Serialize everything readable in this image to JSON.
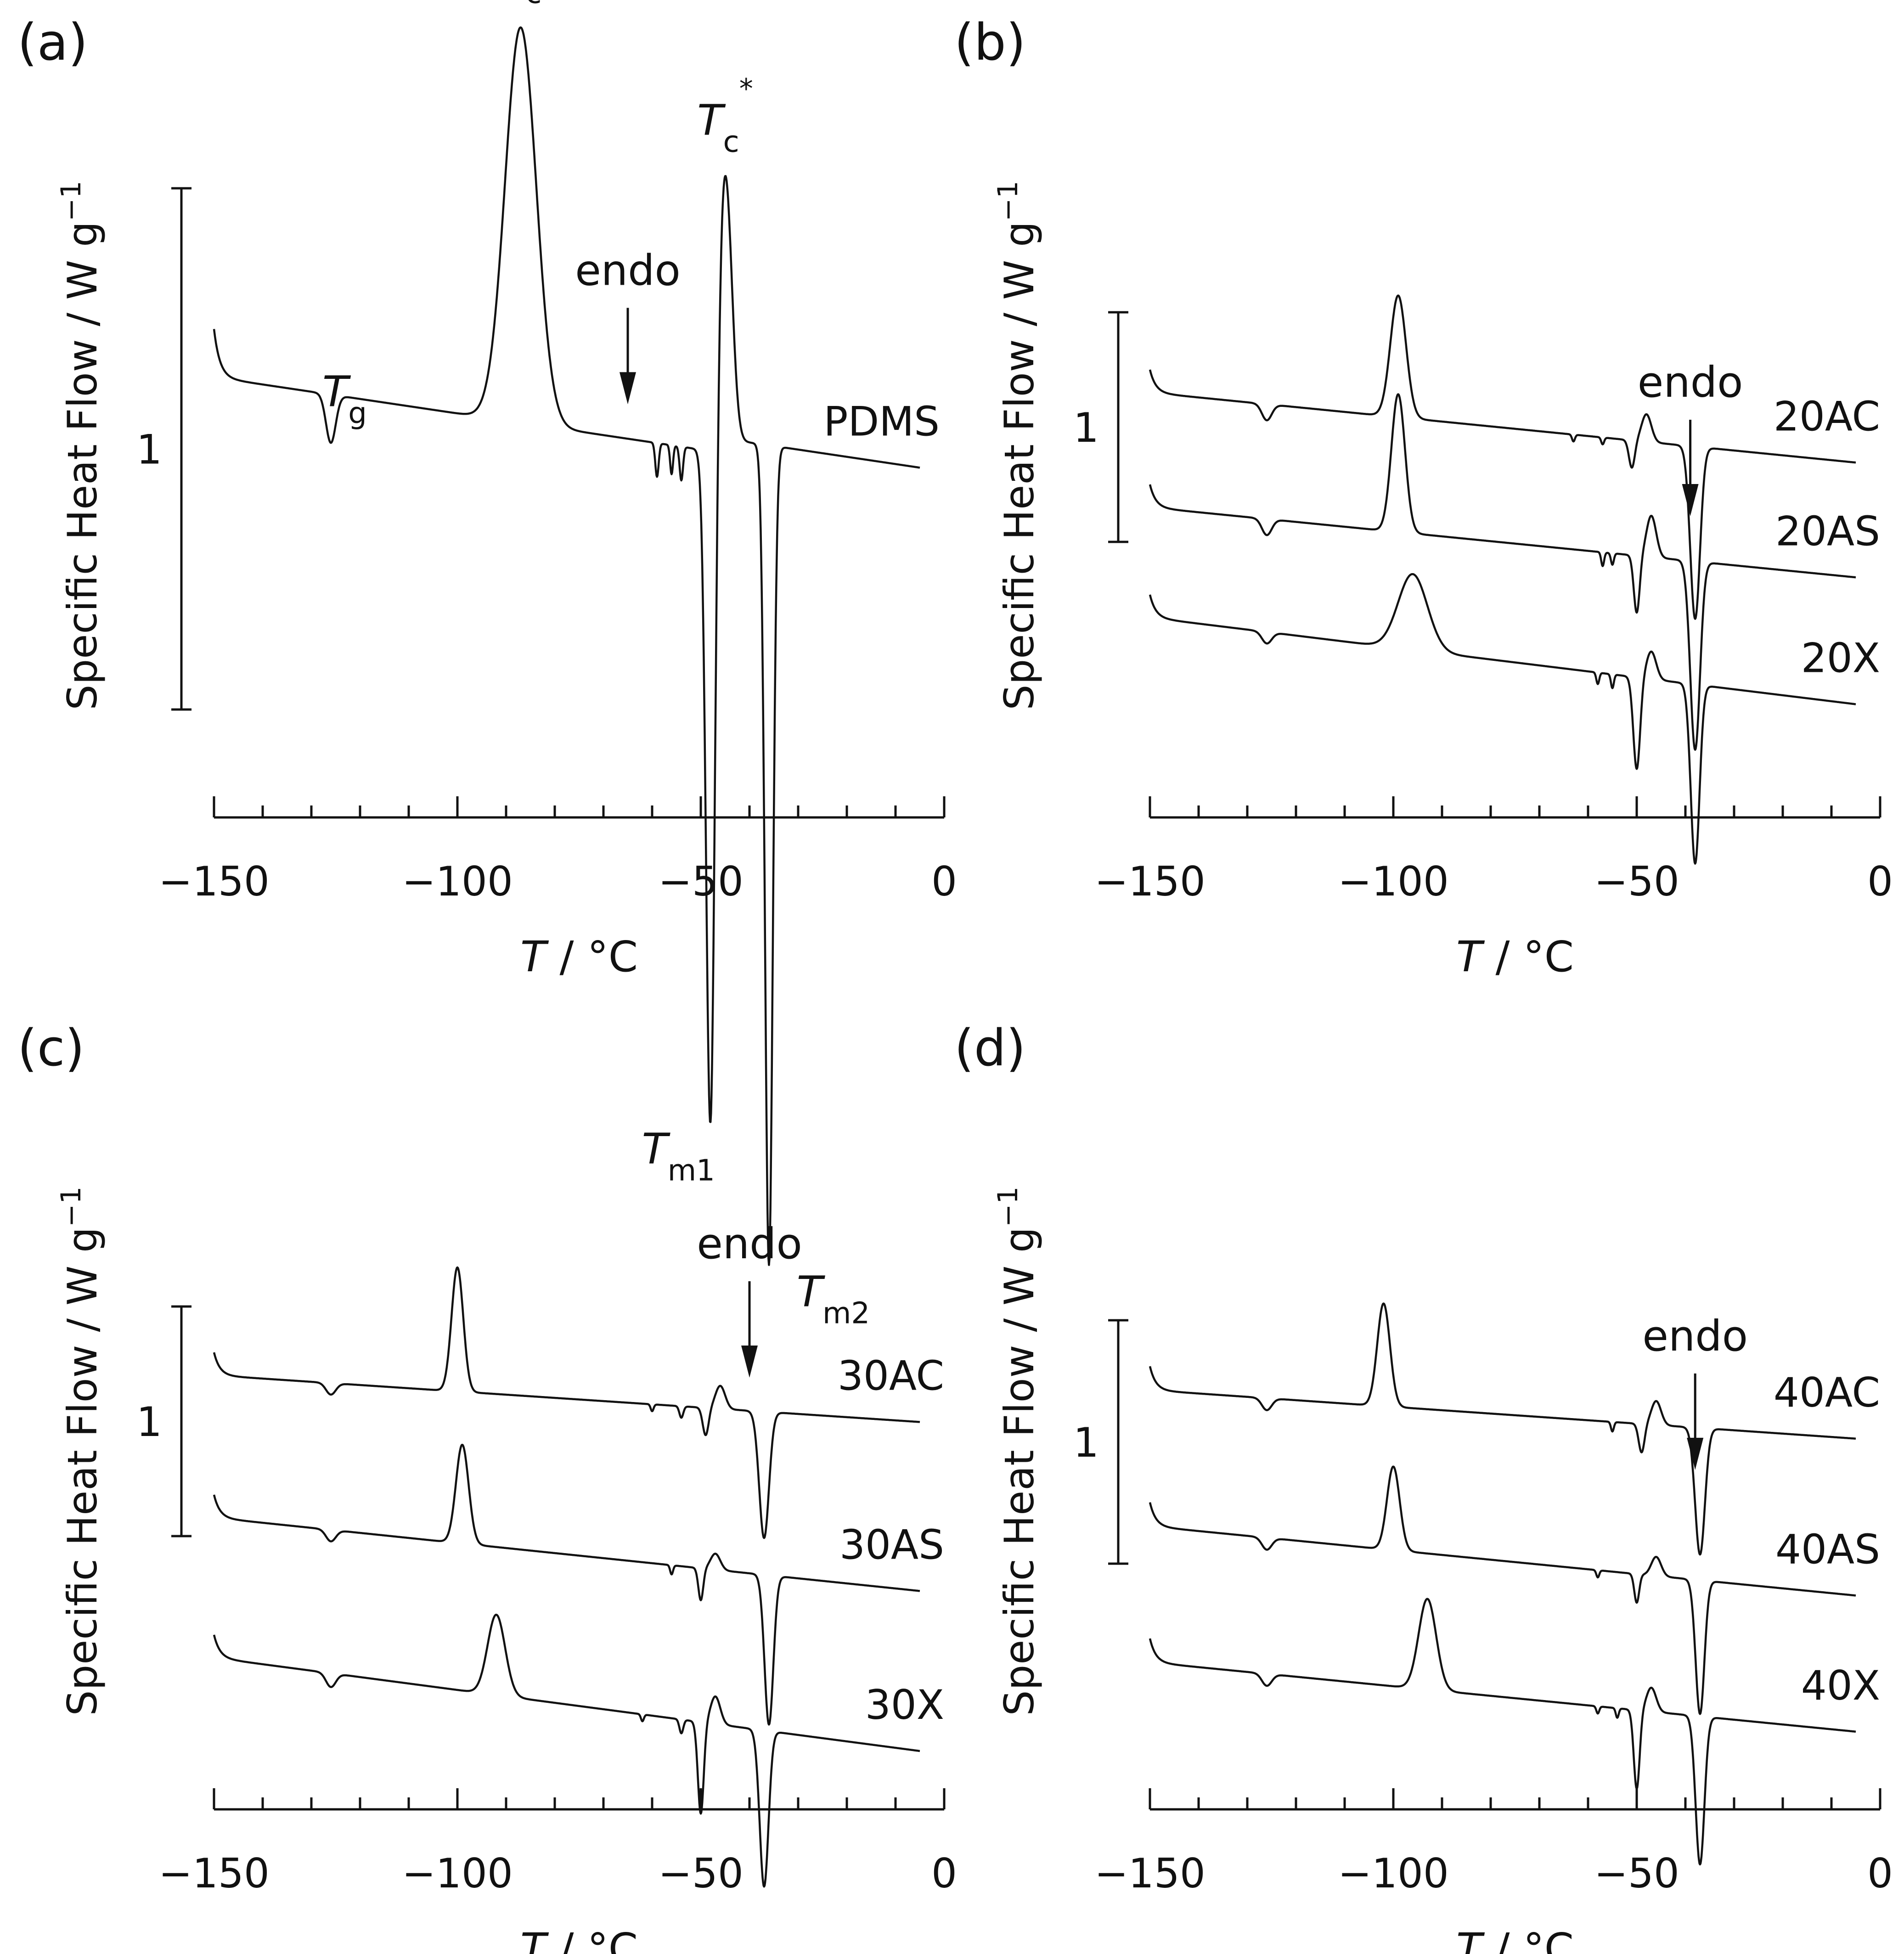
{
  "chart_data": [
    {
      "panel": "(a)",
      "type": "line",
      "xlabel_var": "T",
      "xlabel_unit": " / °C",
      "ylabel": "Specific Heat Flow / W g",
      "ylabel_exp": "−1",
      "xlim": [
        -150,
        0
      ],
      "xticks": [
        -150,
        -100,
        -50,
        0
      ],
      "xtick_labels": [
        "−150",
        "−100",
        "−50",
        "0"
      ],
      "scale_bar_value": 1,
      "scale_bar_label": "1",
      "endo_label": "endo",
      "endo_x": -65,
      "annotations": [
        {
          "name": "Tg",
          "var": "T",
          "sub": "g",
          "sup": "",
          "x": -126
        },
        {
          "name": "Tc",
          "var": "T",
          "sub": "c",
          "sup": "",
          "x": -87
        },
        {
          "name": "Tc-star",
          "var": "T",
          "sub": "c",
          "sup": "*",
          "x": -45
        },
        {
          "name": "Tm1",
          "var": "T",
          "sub": "m1",
          "sup": "",
          "x": -48
        },
        {
          "name": "Tm2",
          "var": "T",
          "sub": "m2",
          "sup": "",
          "x": -36
        }
      ],
      "series": [
        {
          "name": "PDMS",
          "baseline": 0.87,
          "slope": 0.015,
          "step": 0.0,
          "features": [
            [
              -126,
              -0.1,
              1.0
            ],
            [
              -87,
              0.82,
              3.2
            ],
            [
              -59,
              -0.07,
              0.35
            ],
            [
              -56,
              -0.06,
              0.3
            ],
            [
              -54,
              -0.07,
              0.35
            ],
            [
              -48,
              -1.45,
              0.9
            ],
            [
              -45,
              0.58,
              1.4
            ],
            [
              -36,
              -1.7,
              0.8
            ]
          ],
          "sigmoids": [
            [
              -42,
              0.6,
              0.03
            ]
          ]
        }
      ]
    },
    {
      "panel": "(b)",
      "type": "line",
      "xlabel_var": "T",
      "xlabel_unit": " / °C",
      "ylabel": "Specific Heat Flow / W g",
      "ylabel_exp": "−1",
      "xlim": [
        -150,
        0
      ],
      "xticks": [
        -150,
        -100,
        -50,
        0
      ],
      "xtick_labels": [
        "−150",
        "−100",
        "−50",
        "0"
      ],
      "scale_bar_value": 1,
      "scale_bar_label": "1",
      "endo_label": "endo",
      "endo_x": -39,
      "annotations": [],
      "series": [
        {
          "name": "20AC",
          "baseline": 1.76,
          "slope": 0.021,
          "step": 0.0,
          "features": [
            [
              -126,
              -0.07,
              1.0
            ],
            [
              -99,
              0.53,
              1.6
            ],
            [
              -63,
              -0.03,
              0.3
            ],
            [
              -57,
              -0.03,
              0.3
            ],
            [
              -51,
              -0.12,
              0.6
            ],
            [
              -48,
              0.12,
              1.0
            ],
            [
              -38,
              -0.75,
              1.0
            ]
          ],
          "sigmoids": []
        },
        {
          "name": "20AS",
          "baseline": 1.26,
          "slope": 0.021,
          "step": 0.0,
          "features": [
            [
              -126,
              -0.07,
              1.0
            ],
            [
              -99,
              0.6,
              1.4
            ],
            [
              -57,
              -0.06,
              0.3
            ],
            [
              -55,
              -0.05,
              0.3
            ],
            [
              -50,
              -0.25,
              0.6
            ],
            [
              -47,
              0.18,
              1.0
            ],
            [
              -38,
              -0.82,
              1.0
            ]
          ],
          "sigmoids": []
        },
        {
          "name": "20X",
          "baseline": 0.78,
          "slope": 0.026,
          "step": 0.0,
          "features": [
            [
              -126,
              -0.05,
              1.0
            ],
            [
              -96,
              0.33,
              3.0
            ],
            [
              -58,
              -0.05,
              0.3
            ],
            [
              -55,
              -0.06,
              0.3
            ],
            [
              -50,
              -0.4,
              0.7
            ],
            [
              -47,
              0.12,
              1.0
            ],
            [
              -38,
              -0.78,
              0.9
            ]
          ],
          "sigmoids": []
        }
      ]
    },
    {
      "panel": "(c)",
      "type": "line",
      "xlabel_var": "T",
      "xlabel_unit": " / °C",
      "ylabel": "Specific Heat Flow / W g",
      "ylabel_exp": "−1",
      "xlim": [
        -150,
        0
      ],
      "xticks": [
        -150,
        -100,
        -50,
        0
      ],
      "xtick_labels": [
        "−150",
        "−100",
        "−50",
        "0"
      ],
      "scale_bar_value": 1,
      "scale_bar_label": "1",
      "endo_label": "endo",
      "endo_x": -40,
      "annotations": [],
      "series": [
        {
          "name": "30AC",
          "baseline": 1.77,
          "slope": 0.014,
          "step": 0.0,
          "features": [
            [
              -126,
              -0.05,
              1.0
            ],
            [
              -100,
              0.54,
              1.2
            ],
            [
              -60,
              -0.03,
              0.3
            ],
            [
              -54,
              -0.05,
              0.4
            ],
            [
              -49,
              -0.12,
              0.6
            ],
            [
              -46,
              0.1,
              1.0
            ],
            [
              -37,
              -0.55,
              1.0
            ]
          ],
          "sigmoids": []
        },
        {
          "name": "30AS",
          "baseline": 1.15,
          "slope": 0.022,
          "step": 0.0,
          "features": [
            [
              -126,
              -0.05,
              1.0
            ],
            [
              -99,
              0.43,
              1.3
            ],
            [
              -56,
              -0.04,
              0.3
            ],
            [
              -50,
              -0.14,
              0.5
            ],
            [
              -47,
              0.07,
              1.0
            ],
            [
              -36,
              -0.65,
              0.9
            ]
          ],
          "sigmoids": []
        },
        {
          "name": "30X",
          "baseline": 0.54,
          "slope": 0.028,
          "step": 0.0,
          "features": [
            [
              -126,
              -0.06,
              1.0
            ],
            [
              -92,
              0.35,
              1.8
            ],
            [
              -62,
              -0.03,
              0.3
            ],
            [
              -54,
              -0.06,
              0.4
            ],
            [
              -50,
              -0.4,
              0.6
            ],
            [
              -47,
              0.12,
              1.0
            ],
            [
              -37,
              -0.68,
              0.9
            ]
          ],
          "sigmoids": []
        }
      ]
    },
    {
      "panel": "(d)",
      "type": "line",
      "xlabel_var": "T",
      "xlabel_unit": " / °C",
      "ylabel": "Specific Heat Flow / W g",
      "ylabel_exp": "−1",
      "xlim": [
        -150,
        0
      ],
      "xticks": [
        -150,
        -100,
        -50,
        0
      ],
      "xtick_labels": [
        "−150",
        "−100",
        "−50",
        "0"
      ],
      "scale_bar_value": 1,
      "scale_bar_label": "1",
      "endo_label": "endo",
      "endo_x": -38,
      "annotations": [],
      "series": [
        {
          "name": "40AC",
          "baseline": 1.64,
          "slope": 0.014,
          "step": 0.0,
          "features": [
            [
              -126,
              -0.05,
              1.0
            ],
            [
              -102,
              0.43,
              1.3
            ],
            [
              -55,
              -0.04,
              0.3
            ],
            [
              -49,
              -0.12,
              0.6
            ],
            [
              -46,
              0.1,
              1.0
            ],
            [
              -37,
              -0.53,
              1.0
            ]
          ],
          "sigmoids": []
        },
        {
          "name": "40AS",
          "baseline": 1.07,
          "slope": 0.02,
          "step": 0.0,
          "features": [
            [
              -126,
              -0.05,
              1.0
            ],
            [
              -100,
              0.35,
              1.3
            ],
            [
              -58,
              -0.03,
              0.3
            ],
            [
              -50,
              -0.12,
              0.5
            ],
            [
              -46,
              0.08,
              1.0
            ],
            [
              -37,
              -0.56,
              0.9
            ]
          ],
          "sigmoids": []
        },
        {
          "name": "40X",
          "baseline": 0.5,
          "slope": 0.02,
          "step": 0.0,
          "features": [
            [
              -126,
              -0.05,
              1.0
            ],
            [
              -93,
              0.38,
              1.8
            ],
            [
              -58,
              -0.03,
              0.3
            ],
            [
              -54,
              -0.04,
              0.3
            ],
            [
              -50,
              -0.33,
              0.6
            ],
            [
              -47,
              0.1,
              1.0
            ],
            [
              -37,
              -0.62,
              0.9
            ]
          ],
          "sigmoids": []
        }
      ]
    }
  ]
}
